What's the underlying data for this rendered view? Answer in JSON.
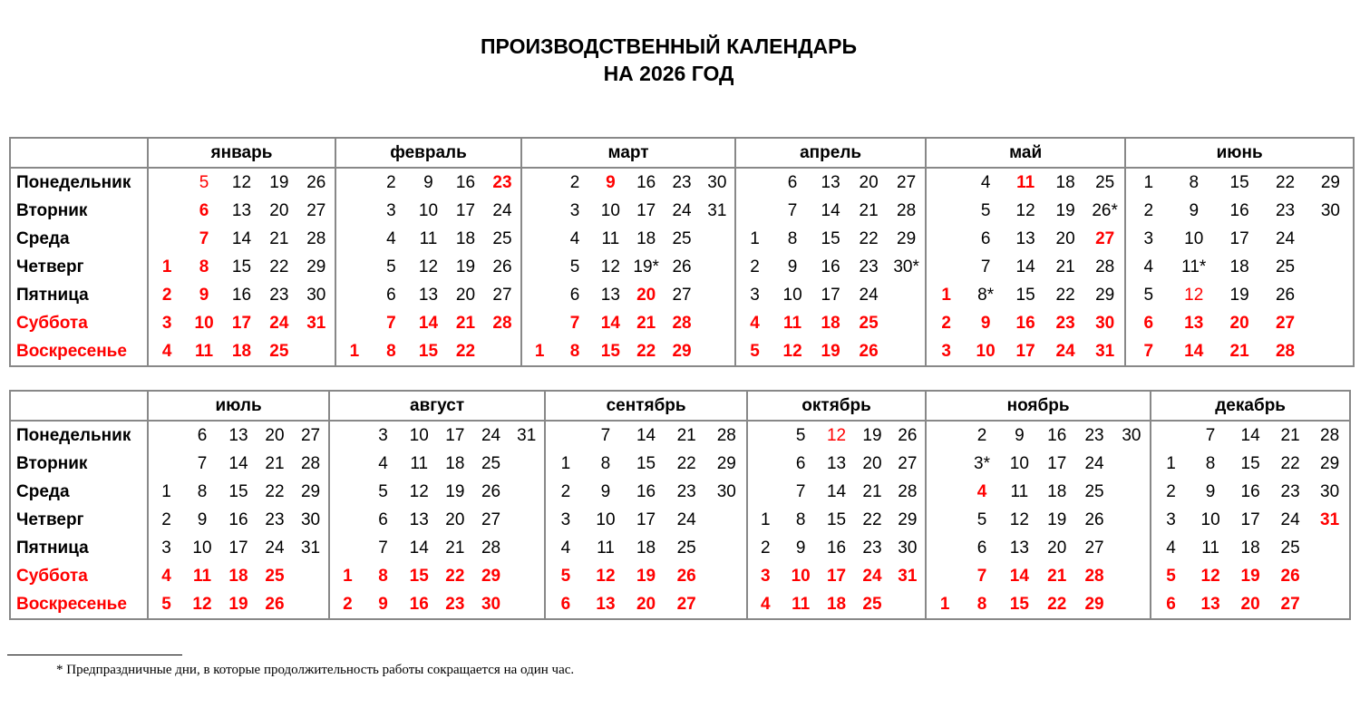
{
  "title_line1": "ПРОИЗВОДСТВЕННЫЙ КАЛЕНДАРЬ",
  "title_line2": "НА 2026 ГОД",
  "weekdays": [
    "Понедельник",
    "Вторник",
    "Среда",
    "Четверг",
    "Пятница",
    "Суббота",
    "Воскресенье"
  ],
  "colors": {
    "holiday": "#ff0000",
    "text": "#000000",
    "border": "#888888"
  },
  "tables": [
    {
      "months": [
        {
          "name": "январь",
          "weeks": [
            [
              "",
              "",
              "",
              "1",
              "2",
              "3",
              "4"
            ],
            [
              "5",
              "6",
              "7",
              "8",
              "9",
              "10",
              "11"
            ],
            [
              "12",
              "13",
              "14",
              "15",
              "16",
              "17",
              "18"
            ],
            [
              "19",
              "20",
              "21",
              "22",
              "23",
              "24",
              "25"
            ],
            [
              "26",
              "27",
              "28",
              "29",
              "30",
              "31",
              ""
            ]
          ],
          "red_bold": [
            "1",
            "2",
            "6",
            "7",
            "8",
            "9"
          ],
          "red_regular": [
            "5"
          ]
        },
        {
          "name": "февраль",
          "weeks": [
            [
              "",
              "",
              "",
              "",
              "",
              "",
              "1"
            ],
            [
              "2",
              "3",
              "4",
              "5",
              "6",
              "7",
              "8"
            ],
            [
              "9",
              "10",
              "11",
              "12",
              "13",
              "14",
              "15"
            ],
            [
              "16",
              "17",
              "18",
              "19",
              "20",
              "21",
              "22"
            ],
            [
              "23",
              "24",
              "25",
              "26",
              "27",
              "28",
              ""
            ]
          ],
          "red_bold": [
            "23"
          ],
          "red_regular": []
        },
        {
          "name": "март",
          "weeks": [
            [
              "",
              "",
              "",
              "",
              "",
              "",
              "1"
            ],
            [
              "2",
              "3",
              "4",
              "5",
              "6",
              "7",
              "8"
            ],
            [
              "9",
              "10",
              "11",
              "12",
              "13",
              "14",
              "15"
            ],
            [
              "16",
              "17",
              "18",
              "19*",
              "20",
              "21",
              "22"
            ],
            [
              "23",
              "24",
              "25",
              "26",
              "27",
              "28",
              "29"
            ],
            [
              "30",
              "31",
              "",
              "",
              "",
              "",
              ""
            ]
          ],
          "red_bold": [
            "9",
            "20"
          ],
          "red_regular": []
        },
        {
          "name": "апрель",
          "weeks": [
            [
              "",
              "",
              "1",
              "2",
              "3",
              "4",
              "5"
            ],
            [
              "6",
              "7",
              "8",
              "9",
              "10",
              "11",
              "12"
            ],
            [
              "13",
              "14",
              "15",
              "16",
              "17",
              "18",
              "19"
            ],
            [
              "20",
              "21",
              "22",
              "23",
              "24",
              "25",
              "26"
            ],
            [
              "27",
              "28",
              "29",
              "30*",
              "",
              "",
              ""
            ]
          ],
          "red_bold": [],
          "red_regular": []
        },
        {
          "name": "май",
          "weeks": [
            [
              "",
              "",
              "",
              "",
              "1",
              "2",
              "3"
            ],
            [
              "4",
              "5",
              "6",
              "7",
              "8*",
              "9",
              "10"
            ],
            [
              "11",
              "12",
              "13",
              "14",
              "15",
              "16",
              "17"
            ],
            [
              "18",
              "19",
              "20",
              "21",
              "22",
              "23",
              "24"
            ],
            [
              "25",
              "26*",
              "27",
              "28",
              "29",
              "30",
              "31"
            ]
          ],
          "red_bold": [
            "1",
            "11",
            "27"
          ],
          "red_regular": []
        },
        {
          "name": "июнь",
          "weeks": [
            [
              "1",
              "2",
              "3",
              "4",
              "5",
              "6",
              "7"
            ],
            [
              "8",
              "9",
              "10",
              "11*",
              "12",
              "13",
              "14"
            ],
            [
              "15",
              "16",
              "17",
              "18",
              "19",
              "20",
              "21"
            ],
            [
              "22",
              "23",
              "24",
              "25",
              "26",
              "27",
              "28"
            ],
            [
              "29",
              "30",
              "",
              "",
              "",
              "",
              ""
            ]
          ],
          "red_bold": [],
          "red_regular": [
            "12"
          ]
        }
      ]
    },
    {
      "months": [
        {
          "name": "июль",
          "weeks": [
            [
              "",
              "",
              "1",
              "2",
              "3",
              "4",
              "5"
            ],
            [
              "6",
              "7",
              "8",
              "9",
              "10",
              "11",
              "12"
            ],
            [
              "13",
              "14",
              "15",
              "16",
              "17",
              "18",
              "19"
            ],
            [
              "20",
              "21",
              "22",
              "23",
              "24",
              "25",
              "26"
            ],
            [
              "27",
              "28",
              "29",
              "30",
              "31",
              "",
              ""
            ]
          ],
          "red_bold": [],
          "red_regular": []
        },
        {
          "name": "август",
          "weeks": [
            [
              "",
              "",
              "",
              "",
              "",
              "1",
              "2"
            ],
            [
              "3",
              "4",
              "5",
              "6",
              "7",
              "8",
              "9"
            ],
            [
              "10",
              "11",
              "12",
              "13",
              "14",
              "15",
              "16"
            ],
            [
              "17",
              "18",
              "19",
              "20",
              "21",
              "22",
              "23"
            ],
            [
              "24",
              "25",
              "26",
              "27",
              "28",
              "29",
              "30"
            ],
            [
              "31",
              "",
              "",
              "",
              "",
              "",
              ""
            ]
          ],
          "red_bold": [],
          "red_regular": []
        },
        {
          "name": "сентябрь",
          "weeks": [
            [
              "",
              "1",
              "2",
              "3",
              "4",
              "5",
              "6"
            ],
            [
              "7",
              "8",
              "9",
              "10",
              "11",
              "12",
              "13"
            ],
            [
              "14",
              "15",
              "16",
              "17",
              "18",
              "19",
              "20"
            ],
            [
              "21",
              "22",
              "23",
              "24",
              "25",
              "26",
              "27"
            ],
            [
              "28",
              "29",
              "30",
              "",
              "",
              "",
              ""
            ]
          ],
          "red_bold": [],
          "red_regular": []
        },
        {
          "name": "октябрь",
          "weeks": [
            [
              "",
              "",
              "",
              "1",
              "2",
              "3",
              "4"
            ],
            [
              "5",
              "6",
              "7",
              "8",
              "9",
              "10",
              "11"
            ],
            [
              "12",
              "13",
              "14",
              "15",
              "16",
              "17",
              "18"
            ],
            [
              "19",
              "20",
              "21",
              "22",
              "23",
              "24",
              "25"
            ],
            [
              "26",
              "27",
              "28",
              "29",
              "30",
              "31",
              ""
            ]
          ],
          "red_bold": [],
          "red_regular": [
            "12"
          ]
        },
        {
          "name": "ноябрь",
          "weeks": [
            [
              "",
              "",
              "",
              "",
              "",
              "",
              "1"
            ],
            [
              "2",
              "3*",
              "4",
              "5",
              "6",
              "7",
              "8"
            ],
            [
              "9",
              "10",
              "11",
              "12",
              "13",
              "14",
              "15"
            ],
            [
              "16",
              "17",
              "18",
              "19",
              "20",
              "21",
              "22"
            ],
            [
              "23",
              "24",
              "25",
              "26",
              "27",
              "28",
              "29"
            ],
            [
              "30",
              "",
              "",
              "",
              "",
              "",
              ""
            ]
          ],
          "red_bold": [
            "4"
          ],
          "red_regular": []
        },
        {
          "name": "декабрь",
          "weeks": [
            [
              "",
              "1",
              "2",
              "3",
              "4",
              "5",
              "6"
            ],
            [
              "7",
              "8",
              "9",
              "10",
              "11",
              "12",
              "13"
            ],
            [
              "14",
              "15",
              "16",
              "17",
              "18",
              "19",
              "20"
            ],
            [
              "21",
              "22",
              "23",
              "24",
              "25",
              "26",
              "27"
            ],
            [
              "28",
              "29",
              "30",
              "31",
              "",
              "",
              ""
            ]
          ],
          "red_bold": [
            "31"
          ],
          "red_regular": []
        }
      ]
    }
  ],
  "footnote": "* Предпраздничные дни, в которые продолжительность работы сокращается на один час."
}
